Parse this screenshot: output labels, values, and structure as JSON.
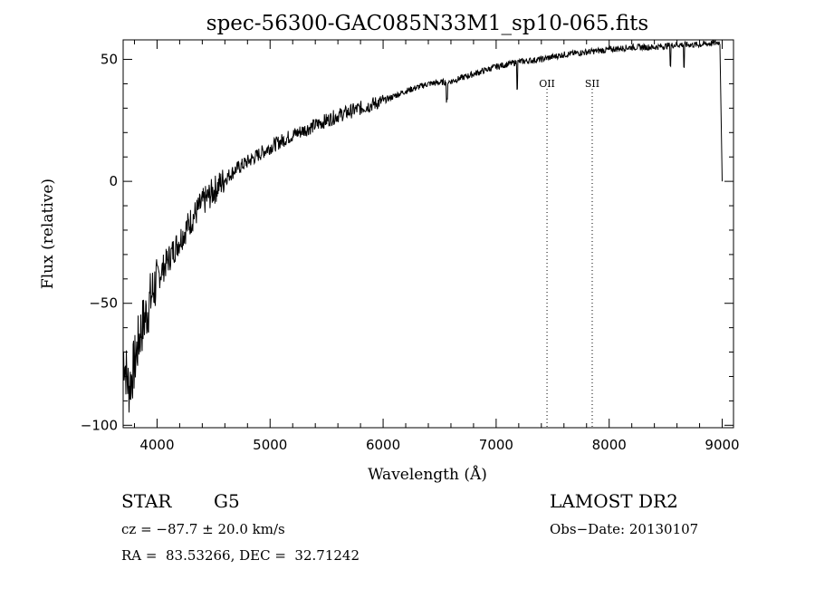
{
  "chart_data": {
    "type": "line",
    "title": "spec-56300-GAC085N33M1_sp10-065.fits",
    "xlabel": "Wavelength (Å)",
    "ylabel": "Flux (relative)",
    "xlim": [
      3700,
      9100
    ],
    "ylim": [
      -101,
      58
    ],
    "x_ticks": [
      "4000",
      "5000",
      "6000",
      "7000",
      "8000",
      "9000"
    ],
    "y_ticks": [
      "−100",
      "−50",
      "0",
      "50"
    ],
    "grid": false,
    "series": [
      {
        "x": [
          3700,
          3750,
          3800,
          3850,
          3900,
          3950,
          4000,
          4100,
          4200,
          4300,
          4400,
          4500,
          4600,
          4700,
          4800,
          4900,
          5000,
          5200,
          5400,
          5600,
          5800,
          6000,
          6200,
          6400,
          6600,
          6800,
          7000,
          7200,
          7400,
          7600,
          7800,
          8000,
          8200,
          8400,
          8600,
          8800,
          8980,
          9000
        ],
        "y": [
          -70,
          -85,
          -75,
          -62,
          -55,
          -47,
          -40,
          -32,
          -24,
          -16,
          -9,
          -4,
          1,
          5,
          8,
          11,
          14,
          19,
          23,
          27,
          30,
          33,
          37,
          40,
          41,
          44,
          47,
          49,
          50,
          52,
          53,
          54,
          55,
          55,
          56,
          56,
          57,
          0
        ]
      }
    ],
    "line_markers": [
      {
        "label": "OII",
        "x": 7450
      },
      {
        "label": "SII",
        "x": 7850
      }
    ]
  },
  "footer": {
    "object_type": "STAR",
    "subclass": "G5",
    "cz": "cz = −87.7 ± 20.0 km/s",
    "radec": "RA =  83.53266, DEC =  32.71242",
    "survey": "LAMOST DR2",
    "obs_date": "Obs−Date: 20130107"
  }
}
